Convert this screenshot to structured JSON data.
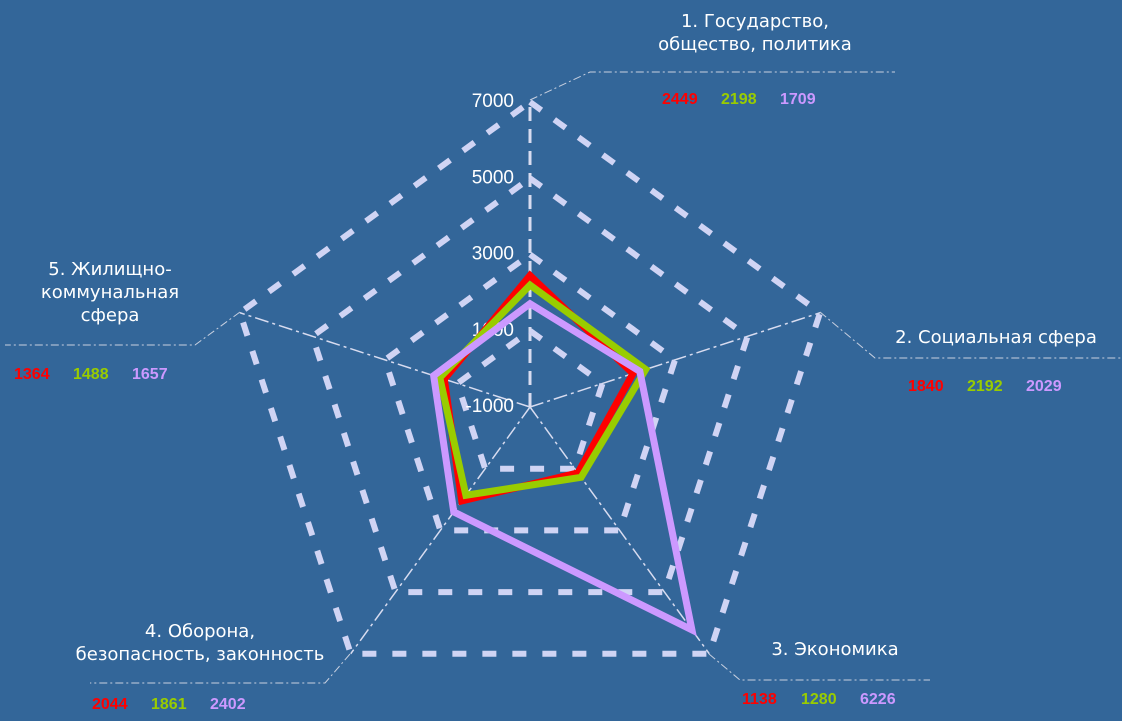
{
  "chart_data": {
    "type": "radar",
    "categories": [
      "1. Государство,\nобщество, политика",
      "2. Социальная сфера",
      "3. Экономика",
      "4. Оборона,\nбезопасность, законность",
      "5. Жилищно-\nкоммунальная\nсфера"
    ],
    "series": [
      {
        "color": "#ff0000",
        "values": [
          2449,
          1840,
          1138,
          2044,
          1364
        ]
      },
      {
        "color": "#99cc00",
        "values": [
          2198,
          2192,
          1280,
          1861,
          1488
        ]
      },
      {
        "color": "#cc99ff",
        "values": [
          1709,
          2029,
          6226,
          2402,
          1657
        ]
      }
    ],
    "ylim": [
      -1000,
      7000
    ],
    "yticks": [
      -1000,
      1000,
      3000,
      5000,
      7000
    ],
    "grid": true
  }
}
